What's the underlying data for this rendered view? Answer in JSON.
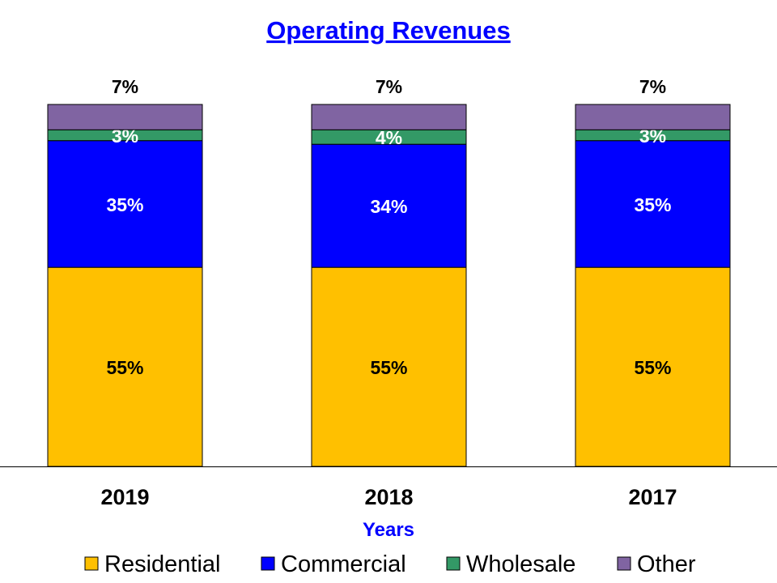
{
  "chart_data": {
    "type": "bar",
    "stacked": true,
    "title": "Operating Revenues",
    "xlabel": "Years",
    "ylabel": "",
    "ylim": [
      0,
      100
    ],
    "grid": false,
    "legend_position": "bottom",
    "categories": [
      "2019",
      "2018",
      "2017"
    ],
    "series": [
      {
        "name": "Residential",
        "values": [
          55,
          55,
          55
        ],
        "color": "#FFC000",
        "label_color": "#000000"
      },
      {
        "name": "Commercial",
        "values": [
          35,
          34,
          35
        ],
        "color": "#0000FF",
        "label_color": "#FFFFFF"
      },
      {
        "name": "Wholesale",
        "values": [
          3,
          4,
          3
        ],
        "color": "#339966",
        "label_color": "#FFFFFF"
      },
      {
        "name": "Other",
        "values": [
          7,
          7,
          7
        ],
        "color": "#8064A2",
        "label_color": "#000000"
      }
    ],
    "title_color": "#0000FF",
    "xlabel_color": "#0000FF"
  }
}
